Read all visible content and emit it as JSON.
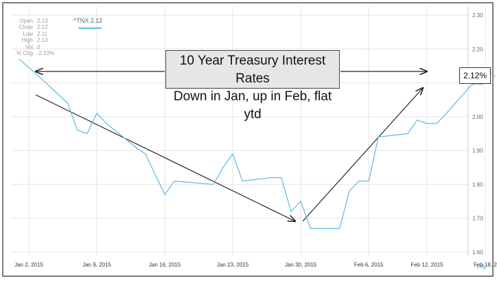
{
  "chart_data": {
    "type": "line",
    "title": "",
    "xlabel": "",
    "ylabel": "",
    "ylim": [
      1.6,
      2.3
    ],
    "yticks": [
      "2.30",
      "2.20",
      "2.10",
      "2.00",
      "1.90",
      "1.80",
      "1.70",
      "1.60"
    ],
    "xtick_labels": [
      "Jan 2, 2015",
      "Jan 9, 2015",
      "Jan 16, 2015",
      "Jan 23, 2015",
      "Jan 30, 2015",
      "Feb 6, 2015",
      "Feb 12, 2015",
      "Feb 18, 2"
    ],
    "grid": true,
    "series": [
      {
        "name": "^TNX 2.12",
        "color": "#5cb8e8",
        "x": [
          "Dec 31, 2014",
          "Jan 2, 2015",
          "Jan 5, 2015",
          "Jan 6, 2015",
          "Jan 7, 2015",
          "Jan 8, 2015",
          "Jan 9, 2015",
          "Jan 12, 2015",
          "Jan 13, 2015",
          "Jan 14, 2015",
          "Jan 15, 2015",
          "Jan 16, 2015",
          "Jan 20, 2015",
          "Jan 21, 2015",
          "Jan 22, 2015",
          "Jan 23, 2015",
          "Jan 26, 2015",
          "Jan 27, 2015",
          "Jan 28, 2015",
          "Jan 29, 2015",
          "Jan 30, 2015",
          "Feb 2, 2015",
          "Feb 3, 2015",
          "Feb 4, 2015",
          "Feb 5, 2015",
          "Feb 6, 2015",
          "Feb 9, 2015",
          "Feb 10, 2015",
          "Feb 11, 2015",
          "Feb 12, 2015",
          "Feb 13, 2015",
          "Feb 17, 2015",
          "Feb 18, 2015"
        ],
        "values": [
          2.17,
          2.12,
          2.04,
          1.96,
          1.95,
          2.01,
          1.98,
          1.91,
          1.89,
          1.83,
          1.77,
          1.81,
          1.8,
          1.85,
          1.89,
          1.81,
          1.82,
          1.82,
          1.72,
          1.75,
          1.67,
          1.67,
          1.78,
          1.81,
          1.81,
          1.94,
          1.95,
          1.99,
          1.98,
          1.98,
          2.01,
          2.14,
          2.12
        ]
      }
    ],
    "annotations": {
      "callout_line1": "10 Year Treasury Interest Rates",
      "callout_line2": "Down in Jan, up in Feb, flat ytd",
      "price_label": "2.12%"
    },
    "quote_panel": [
      {
        "k": "Open",
        "v": "2.13"
      },
      {
        "k": "Close",
        "v": "2.12"
      },
      {
        "k": "Low",
        "v": "2.11"
      },
      {
        "k": "High",
        "v": "2.13"
      },
      {
        "k": "Vol",
        "v": "0"
      },
      {
        "k": "% Chg",
        "v": "-2.53%"
      }
    ],
    "log_button": "Log"
  }
}
